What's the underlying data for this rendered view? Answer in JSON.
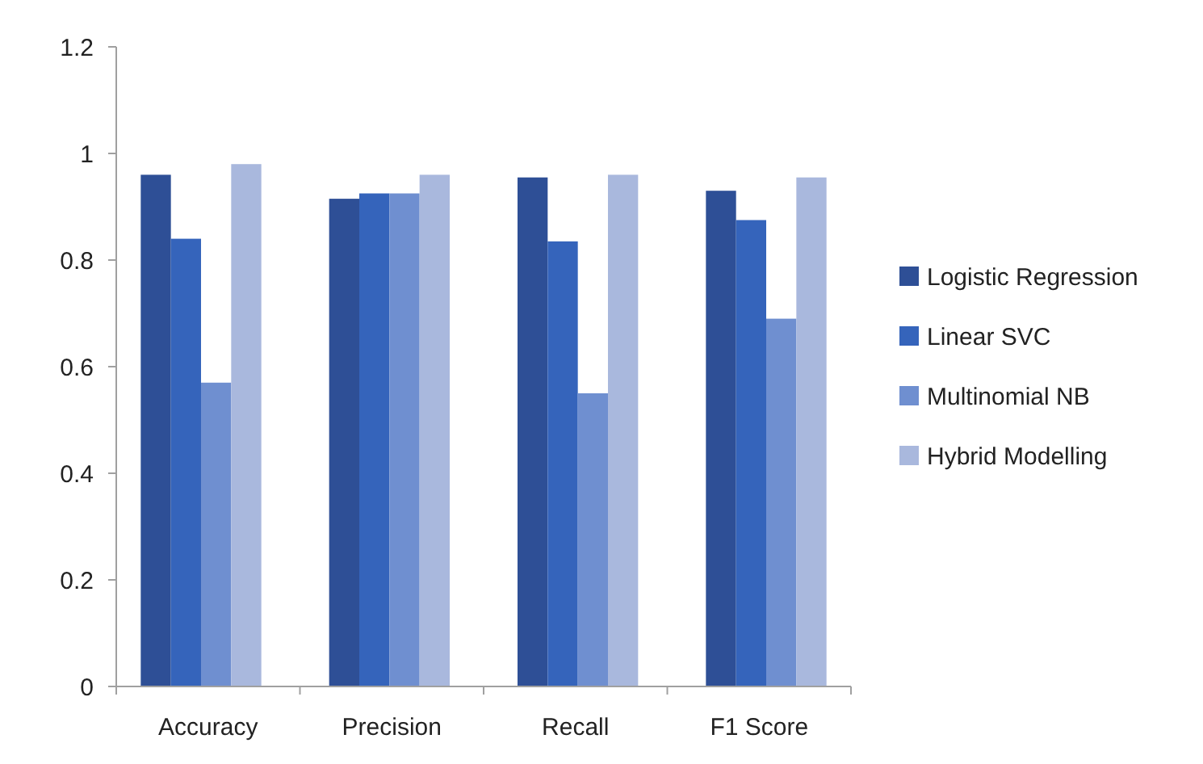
{
  "chart_data": {
    "type": "bar",
    "categories": [
      "Accuracy",
      "Precision",
      "Recall",
      "F1 Score"
    ],
    "series": [
      {
        "name": "Logistic Regression",
        "color": "#2e4f96",
        "values": [
          0.96,
          0.915,
          0.955,
          0.93
        ]
      },
      {
        "name": "Linear SVC",
        "color": "#3564bb",
        "values": [
          0.84,
          0.925,
          0.835,
          0.875
        ]
      },
      {
        "name": "Multinomial NB",
        "color": "#6f8fd0",
        "values": [
          0.57,
          0.925,
          0.55,
          0.69
        ]
      },
      {
        "name": "Hybrid Modelling",
        "color": "#a9b8dd",
        "values": [
          0.98,
          0.96,
          0.96,
          0.955
        ]
      }
    ],
    "ylim": [
      0,
      1.2
    ],
    "yticks": [
      0,
      0.2,
      0.4,
      0.6,
      0.8,
      1,
      1.2
    ],
    "grid": false,
    "legend": "right"
  }
}
